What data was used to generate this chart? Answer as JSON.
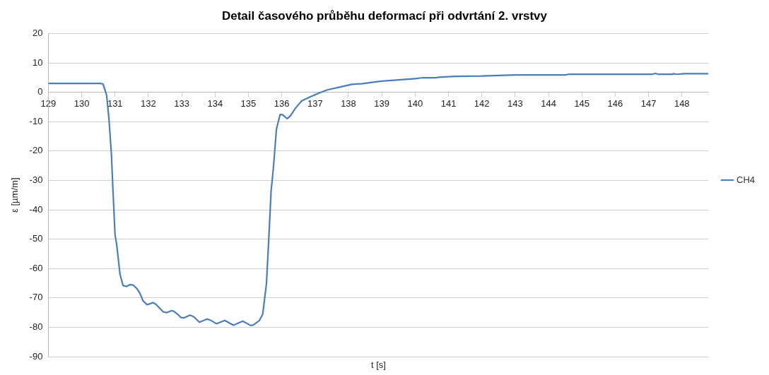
{
  "chart_data": {
    "type": "line",
    "title": "Detail časového průběhu deformací při odvrtání 2. vrstvy",
    "xlabel": "t [s]",
    "ylabel": "ε [µm/m]",
    "x": [
      129,
      130.56,
      130.64,
      130.75,
      130.82,
      130.89,
      130.94,
      131.0,
      131.05,
      131.15,
      131.24,
      131.35,
      131.45,
      131.54,
      131.66,
      131.75,
      131.84,
      131.96,
      132.05,
      132.14,
      132.23,
      132.33,
      132.45,
      132.56,
      132.69,
      132.76,
      132.86,
      132.98,
      133.07,
      133.25,
      133.36,
      133.53,
      133.76,
      133.88,
      134.04,
      134.29,
      134.55,
      134.83,
      135.07,
      135.15,
      135.33,
      135.43,
      135.54,
      135.61,
      135.68,
      135.75,
      135.84,
      135.95,
      136.03,
      136.16,
      136.25,
      136.42,
      136.6,
      136.85,
      137.13,
      137.37,
      137.69,
      138.11,
      138.4,
      138.78,
      139,
      139.5,
      140,
      140.2,
      140.6,
      140.7,
      141.2,
      142,
      143,
      144.5,
      144.6,
      147.1,
      147.2,
      147.3,
      147.7,
      147.75,
      147.85,
      148.05,
      148.8
    ],
    "series": [
      {
        "name": "CH4",
        "color": "#4a7ebb",
        "values": [
          3,
          3,
          2.8,
          -1.1,
          -9.4,
          -20.8,
          -33.8,
          -48.5,
          -51.8,
          -62,
          -65.8,
          -66.1,
          -65.5,
          -65.6,
          -66.9,
          -68.5,
          -71,
          -72.3,
          -72,
          -71.6,
          -72.2,
          -73.4,
          -74.8,
          -75,
          -74.4,
          -74.5,
          -75.4,
          -76.7,
          -76.8,
          -75.9,
          -76.4,
          -78.3,
          -77.2,
          -77.7,
          -78.8,
          -77.7,
          -79.3,
          -77.9,
          -79.4,
          -79.2,
          -77.7,
          -75.5,
          -65.3,
          -50.2,
          -33.8,
          -25.7,
          -12.6,
          -7.6,
          -7.7,
          -9,
          -8.2,
          -5.3,
          -2.9,
          -1.6,
          -0.2,
          0.8,
          1.6,
          2.7,
          2.9,
          3.5,
          3.8,
          4.2,
          4.6,
          4.9,
          4.9,
          5.1,
          5.4,
          5.5,
          5.9,
          5.9,
          6.1,
          6.1,
          6.4,
          6.1,
          6.1,
          6.3,
          6.1,
          6.3,
          6.3
        ]
      }
    ],
    "xlim": [
      129,
      148.8
    ],
    "xticks": [
      129,
      130,
      131,
      132,
      133,
      134,
      135,
      136,
      137,
      138,
      139,
      140,
      141,
      142,
      143,
      144,
      145,
      146,
      147,
      148
    ],
    "ylim": [
      -90,
      20
    ],
    "yticks": [
      -90,
      -80,
      -70,
      -60,
      -50,
      -40,
      -30,
      -20,
      -10,
      0,
      10,
      20
    ],
    "grid": "y",
    "legend": "right",
    "marker": "none",
    "line_style": "solid"
  }
}
